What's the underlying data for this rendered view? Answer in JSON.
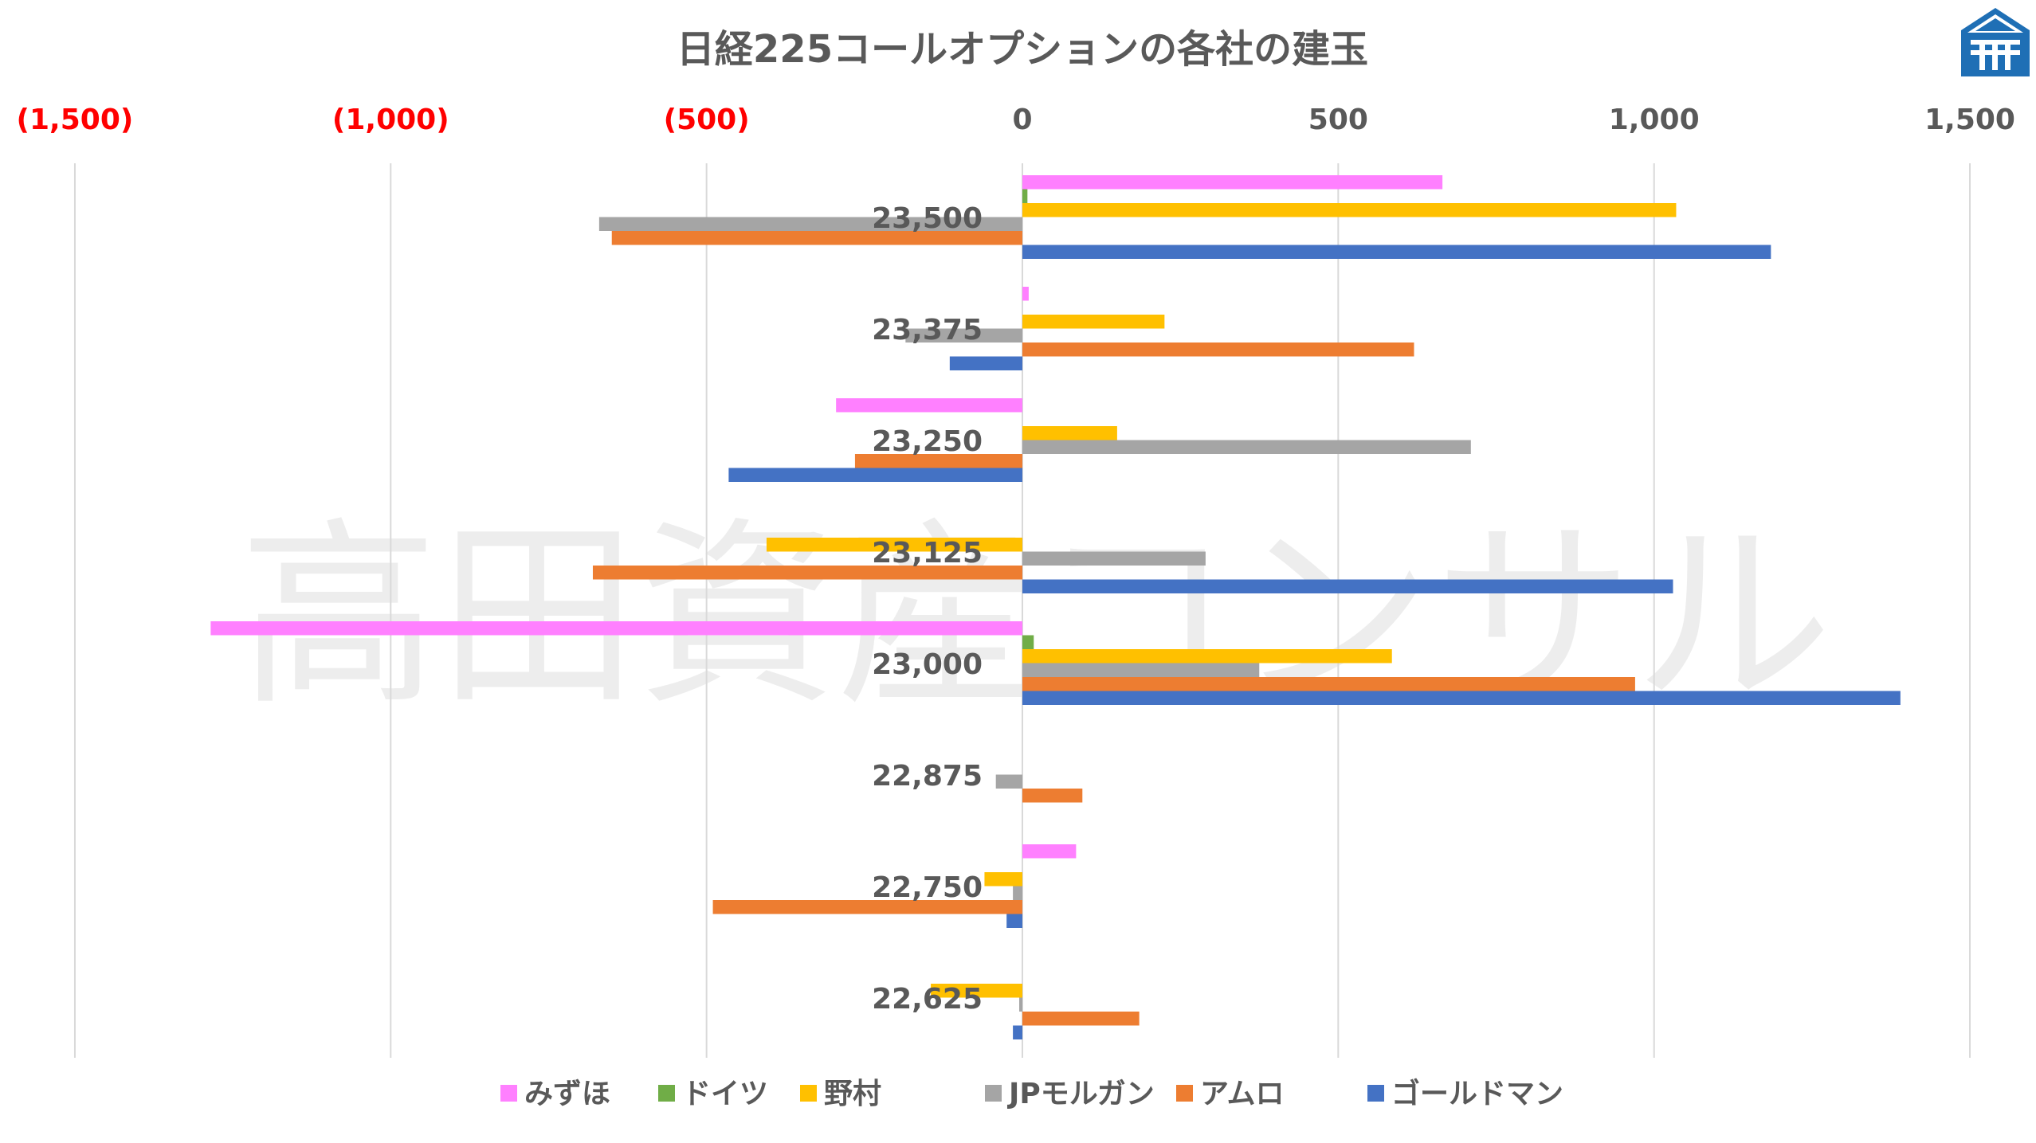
{
  "watermark": "高田資産コンサル",
  "colors": {
    "gridline": "#d9d9d9",
    "axis_text": "#595959",
    "negative_tick": "#ff0000",
    "logo_blue": "#1f6fb5"
  },
  "chart_data": {
    "type": "bar",
    "orientation": "horizontal",
    "grouping": "clustered",
    "title": "日経225コールオプションの各社の建玉",
    "xlim": [
      -1500,
      1500
    ],
    "x_axis_position": "top",
    "x_ticks": [
      {
        "value": -1500,
        "label": "(1,500)"
      },
      {
        "value": -1000,
        "label": "(1,000)"
      },
      {
        "value": -500,
        "label": "(500)"
      },
      {
        "value": 0,
        "label": "0"
      },
      {
        "value": 500,
        "label": "500"
      },
      {
        "value": 1000,
        "label": "1,000"
      },
      {
        "value": 1500,
        "label": "1,500"
      }
    ],
    "grid": "vertical",
    "legend_position": "bottom",
    "categories": [
      "23,500",
      "23,375",
      "23,250",
      "23,125",
      "23,000",
      "22,875",
      "22,750",
      "22,625"
    ],
    "series": [
      {
        "name": "みずほ",
        "color": "#ff80ff",
        "values": [
          665,
          10,
          -295,
          0,
          -1285,
          0,
          85,
          0
        ]
      },
      {
        "name": "ドイツ",
        "color": "#70ad47",
        "values": [
          8,
          0,
          0,
          0,
          18,
          0,
          0,
          0
        ]
      },
      {
        "name": "野村",
        "color": "#ffc000",
        "values": [
          1035,
          225,
          150,
          -405,
          585,
          0,
          -60,
          -145
        ]
      },
      {
        "name": "JPモルガン",
        "color": "#a5a5a5",
        "values": [
          -670,
          -185,
          710,
          290,
          375,
          -42,
          -15,
          -5
        ]
      },
      {
        "name": "アムロ",
        "color": "#ed7d31",
        "values": [
          -650,
          620,
          -265,
          -680,
          970,
          95,
          -490,
          185
        ]
      },
      {
        "name": "ゴールドマン",
        "color": "#4472c4",
        "values": [
          1185,
          -115,
          -465,
          1030,
          1390,
          0,
          -25,
          -15
        ]
      }
    ]
  }
}
